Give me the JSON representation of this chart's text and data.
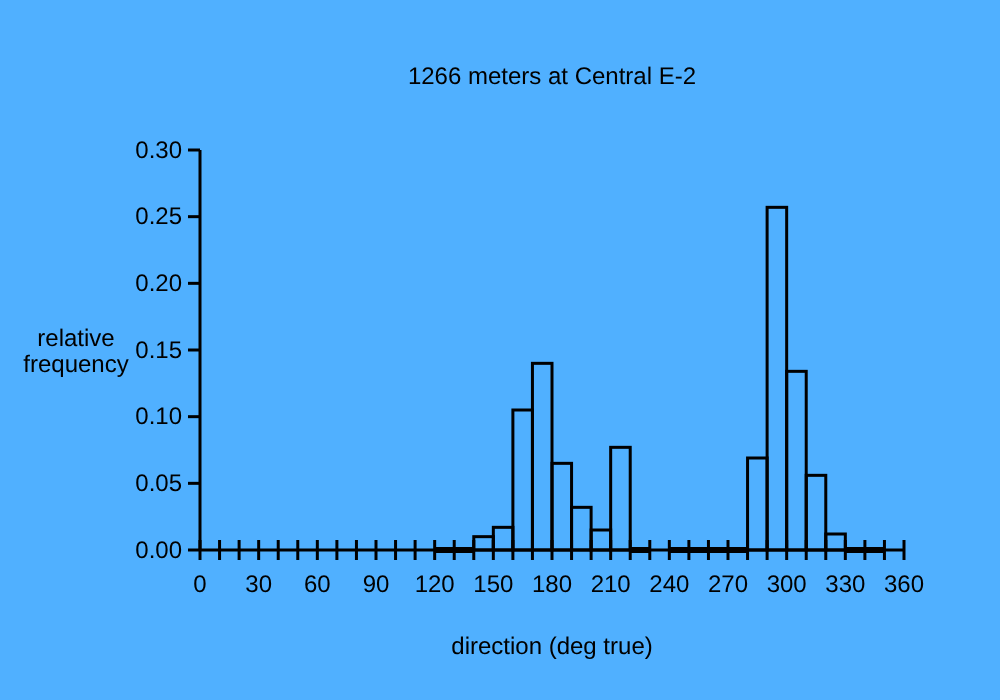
{
  "chart_data": {
    "type": "histogram",
    "title": "1266 meters at Central E-2",
    "xlabel": "direction (deg true)",
    "ylabel": "relative frequency",
    "color": "#000000",
    "bins": [
      120,
      130,
      140,
      150,
      160,
      170,
      180,
      190,
      200,
      210,
      220,
      230,
      240,
      250,
      260,
      270,
      280,
      290,
      300,
      310,
      320,
      330,
      340,
      350
    ],
    "values": [
      0,
      0,
      0.01,
      0.017,
      0.105,
      0.14,
      0.065,
      0.032,
      0.015,
      0.077,
      0,
      null,
      0,
      0,
      0,
      0,
      0.069,
      0.257,
      0.134,
      0.056,
      0.012,
      0,
      0
    ],
    "xlim": [
      0,
      360
    ],
    "xticks": [
      0,
      {
        "value": 10,
        "label": null
      },
      {
        "value": 20,
        "label": null
      },
      30,
      {
        "value": 40,
        "label": null
      },
      {
        "value": 50,
        "label": null
      },
      60,
      {
        "value": 70,
        "label": null
      },
      {
        "value": 80,
        "label": null
      },
      90,
      {
        "value": 100,
        "label": null
      },
      {
        "value": 110,
        "label": null
      },
      120,
      {
        "value": 130,
        "label": null
      },
      {
        "value": 140,
        "label": null
      },
      150,
      {
        "value": 160,
        "label": null
      },
      {
        "value": 170,
        "label": null
      },
      180,
      {
        "value": 190,
        "label": null
      },
      {
        "value": 200,
        "label": null
      },
      210,
      {
        "value": 220,
        "label": null
      },
      {
        "value": 230,
        "label": null
      },
      240,
      {
        "value": 250,
        "label": null
      },
      {
        "value": 260,
        "label": null
      },
      270,
      {
        "value": 280,
        "label": null
      },
      {
        "value": 290,
        "label": null
      },
      300,
      {
        "value": 310,
        "label": null
      },
      {
        "value": 320,
        "label": null
      },
      330,
      {
        "value": 340,
        "label": null
      },
      {
        "value": 350,
        "label": null
      },
      360
    ],
    "ylim": [
      0,
      0.3
    ],
    "yticks": [
      {
        "value": 0,
        "label": "0.00"
      },
      {
        "value": 0.05,
        "label": "0.05"
      },
      {
        "value": 0.1,
        "label": "0.10"
      },
      {
        "value": 0.15,
        "label": "0.15"
      },
      {
        "value": 0.2,
        "label": "0.20"
      },
      {
        "value": 0.25,
        "label": "0.25"
      },
      {
        "value": 0.3,
        "label": "0.30"
      }
    ],
    "grid": false
  }
}
